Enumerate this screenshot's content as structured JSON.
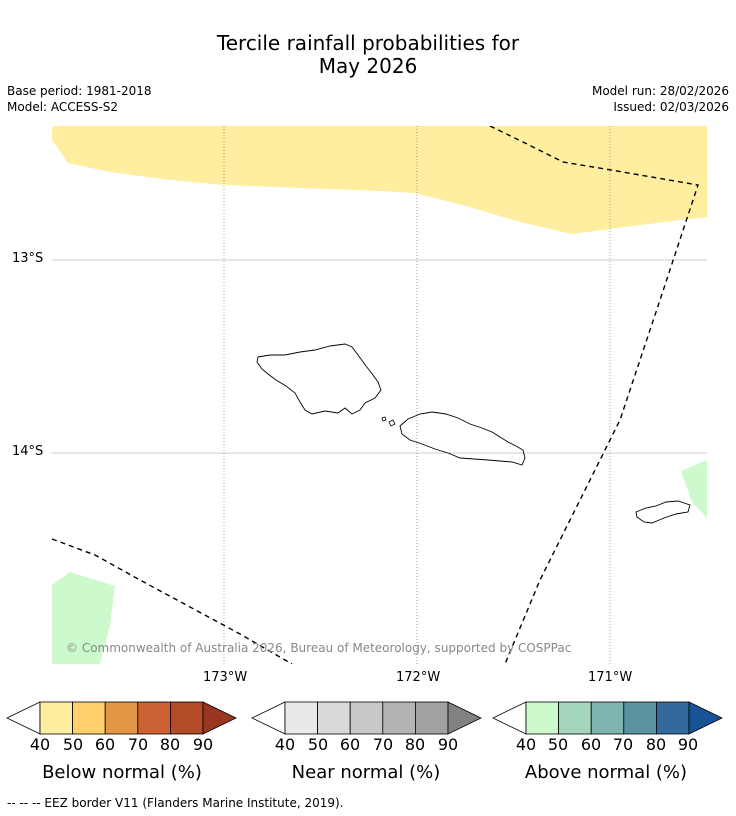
{
  "title": {
    "line1": "Tercile rainfall probabilities for",
    "line2": "May 2026"
  },
  "meta": {
    "base_period": "Base period: 1981-2018",
    "model": "Model: ACCESS-S2",
    "model_run": "Model run: 28/02/2026",
    "issued": "Issued: 02/03/2026"
  },
  "map": {
    "lat_labels": [
      "13°S",
      "14°S"
    ],
    "lon_labels": [
      "173°W",
      "172°W",
      "171°W"
    ],
    "copyright": "© Commonwealth of Australia 2026, Bureau of Meteorology, supported by COSPPac"
  },
  "legend": {
    "ticks": [
      "40",
      "50",
      "60",
      "70",
      "80",
      "90"
    ],
    "below": {
      "label": "Below normal (%)",
      "colors": [
        "#ffeda0",
        "#fed16a",
        "#e39646",
        "#cc6133",
        "#b34a28",
        "#98361f"
      ]
    },
    "near": {
      "label": "Near normal (%)",
      "colors": [
        "#e9e9e9",
        "#d9d9d9",
        "#c8c8c8",
        "#b4b4b4",
        "#a1a1a1",
        "#828282"
      ]
    },
    "above": {
      "label": "Above normal (%)",
      "colors": [
        "#ccfacc",
        "#a3d6bc",
        "#7fb5b0",
        "#5b93a1",
        "#346a9b",
        "#175495"
      ]
    }
  },
  "footnote": "--  --  -- EEZ border V11 (Flanders Marine Institute, 2019)."
}
